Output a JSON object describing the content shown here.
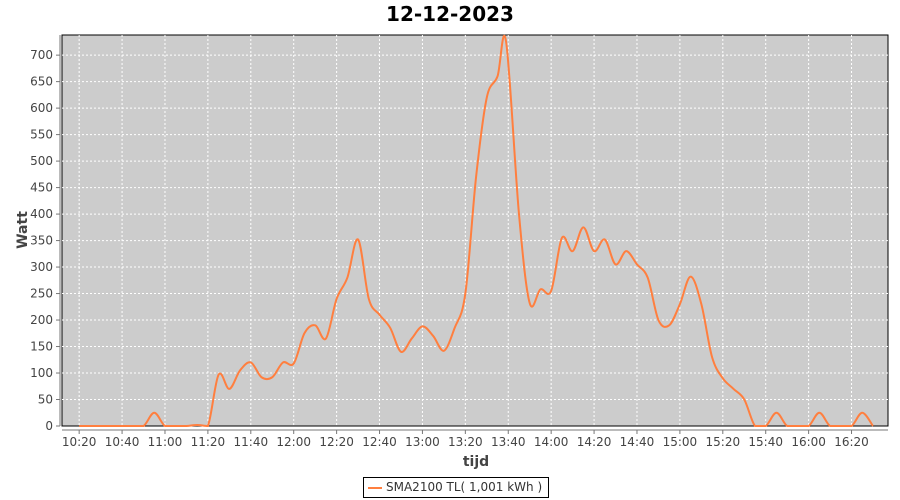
{
  "chart_data": {
    "type": "line",
    "title": "12-12-2023",
    "xlabel": "tijd",
    "ylabel": "Watt",
    "x_ticks": [
      "10:20",
      "10:40",
      "11:00",
      "11:20",
      "11:40",
      "12:00",
      "12:20",
      "12:40",
      "13:00",
      "13:20",
      "13:40",
      "14:00",
      "14:20",
      "14:40",
      "15:00",
      "15:20",
      "15:40",
      "16:00",
      "16:20"
    ],
    "y_ticks": [
      0,
      50,
      100,
      150,
      200,
      250,
      300,
      350,
      400,
      450,
      500,
      550,
      600,
      650,
      700
    ],
    "xlim": [
      "10:12",
      "16:37"
    ],
    "ylim": [
      0,
      738
    ],
    "grid": true,
    "legend_position": "bottom",
    "series": [
      {
        "name": "SMA2100 TL( 1,001 kWh )",
        "color": "#ff7f3f",
        "x": [
          "10:20",
          "10:25",
          "10:30",
          "10:35",
          "10:40",
          "10:45",
          "10:50",
          "10:55",
          "11:00",
          "11:05",
          "11:10",
          "11:15",
          "11:20",
          "11:25",
          "11:30",
          "11:35",
          "11:40",
          "11:45",
          "11:50",
          "11:55",
          "12:00",
          "12:05",
          "12:10",
          "12:15",
          "12:20",
          "12:25",
          "12:30",
          "12:35",
          "12:40",
          "12:45",
          "12:50",
          "12:55",
          "13:00",
          "13:05",
          "13:10",
          "13:15",
          "13:20",
          "13:25",
          "13:30",
          "13:35",
          "13:39",
          "13:45",
          "13:50",
          "13:55",
          "14:00",
          "14:05",
          "14:10",
          "14:15",
          "14:20",
          "14:25",
          "14:30",
          "14:35",
          "14:40",
          "14:45",
          "14:50",
          "14:55",
          "15:00",
          "15:05",
          "15:10",
          "15:15",
          "15:20",
          "15:25",
          "15:30",
          "15:35",
          "15:40",
          "15:45",
          "15:50",
          "15:55",
          "16:00",
          "16:05",
          "16:10",
          "16:15",
          "16:20",
          "16:25",
          "16:30"
        ],
        "values": [
          0,
          0,
          0,
          0,
          0,
          0,
          0,
          25,
          0,
          0,
          0,
          2,
          0,
          97,
          70,
          105,
          120,
          92,
          92,
          120,
          118,
          175,
          190,
          165,
          240,
          280,
          352,
          240,
          210,
          185,
          140,
          165,
          188,
          170,
          142,
          185,
          250,
          470,
          620,
          660,
          725,
          400,
          232,
          258,
          255,
          355,
          330,
          375,
          330,
          352,
          305,
          330,
          305,
          280,
          200,
          190,
          230,
          282,
          230,
          130,
          90,
          70,
          50,
          0,
          0,
          25,
          0,
          0,
          0,
          25,
          0,
          0,
          0,
          25,
          0
        ]
      }
    ]
  }
}
